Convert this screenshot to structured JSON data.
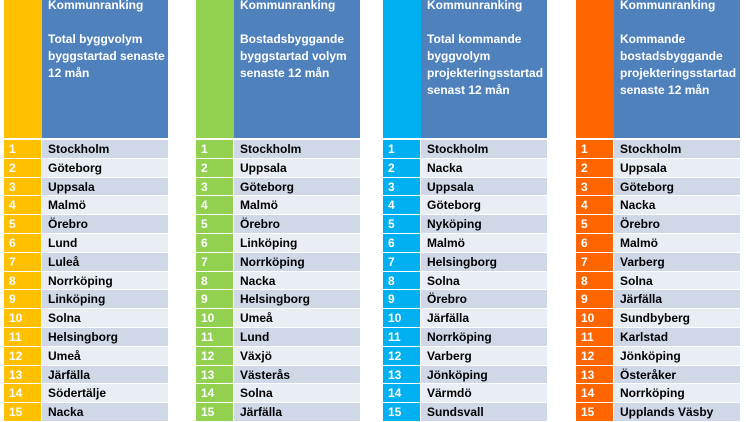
{
  "panels": [
    {
      "accent": "#ffc000",
      "header": "Kommunranking",
      "subheader": "Total byggvolym\nbyggstartad senaste\n12 mån",
      "rows": [
        {
          "rank": "1",
          "name": "Stockholm"
        },
        {
          "rank": "2",
          "name": "Göteborg"
        },
        {
          "rank": "3",
          "name": "Uppsala"
        },
        {
          "rank": "4",
          "name": "Malmö"
        },
        {
          "rank": "5",
          "name": "Örebro"
        },
        {
          "rank": "6",
          "name": "Lund"
        },
        {
          "rank": "7",
          "name": "Luleå"
        },
        {
          "rank": "8",
          "name": "Norrköping"
        },
        {
          "rank": "9",
          "name": "Linköping"
        },
        {
          "rank": "10",
          "name": "Solna"
        },
        {
          "rank": "11",
          "name": "Helsingborg"
        },
        {
          "rank": "12",
          "name": "Umeå"
        },
        {
          "rank": "13",
          "name": "Järfälla"
        },
        {
          "rank": "14",
          "name": "Södertälje"
        },
        {
          "rank": "15",
          "name": "Nacka"
        }
      ]
    },
    {
      "accent": "#92d050",
      "header": "Kommunranking",
      "subheader": "Bostadsbyggande\nbyggstartad volym\nsenaste 12 mån",
      "rows": [
        {
          "rank": "1",
          "name": "Stockholm"
        },
        {
          "rank": "2",
          "name": "Uppsala"
        },
        {
          "rank": "3",
          "name": "Göteborg"
        },
        {
          "rank": "4",
          "name": "Malmö"
        },
        {
          "rank": "5",
          "name": "Örebro"
        },
        {
          "rank": "6",
          "name": "Linköping"
        },
        {
          "rank": "7",
          "name": "Norrköping"
        },
        {
          "rank": "8",
          "name": "Nacka"
        },
        {
          "rank": "9",
          "name": "Helsingborg"
        },
        {
          "rank": "10",
          "name": "Umeå"
        },
        {
          "rank": "11",
          "name": "Lund"
        },
        {
          "rank": "12",
          "name": "Växjö"
        },
        {
          "rank": "13",
          "name": "Västerås"
        },
        {
          "rank": "14",
          "name": "Solna"
        },
        {
          "rank": "15",
          "name": "Järfälla"
        }
      ]
    },
    {
      "accent": "#00b0f0",
      "header": "Kommunranking",
      "subheader": "Total kommande\nbyggvolym\nprojekteringsstartad\nsenast 12 mån",
      "rows": [
        {
          "rank": "1",
          "name": "Stockholm"
        },
        {
          "rank": "2",
          "name": "Nacka"
        },
        {
          "rank": "3",
          "name": "Uppsala"
        },
        {
          "rank": "4",
          "name": "Göteborg"
        },
        {
          "rank": "5",
          "name": "Nyköping"
        },
        {
          "rank": "6",
          "name": "Malmö"
        },
        {
          "rank": "7",
          "name": "Helsingborg"
        },
        {
          "rank": "8",
          "name": "Solna"
        },
        {
          "rank": "9",
          "name": "Örebro"
        },
        {
          "rank": "10",
          "name": "Järfälla"
        },
        {
          "rank": "11",
          "name": "Norrköping"
        },
        {
          "rank": "12",
          "name": "Varberg"
        },
        {
          "rank": "13",
          "name": "Jönköping"
        },
        {
          "rank": "14",
          "name": "Värmdö"
        },
        {
          "rank": "15",
          "name": "Sundsvall"
        }
      ]
    },
    {
      "accent": "#ff6600",
      "header": "Kommunranking",
      "subheader": "Kommande\nbostadsbyggande\nprojekteringsstartad\nsenaste 12 mån",
      "rows": [
        {
          "rank": "1",
          "name": "Stockholm"
        },
        {
          "rank": "2",
          "name": "Uppsala"
        },
        {
          "rank": "3",
          "name": "Göteborg"
        },
        {
          "rank": "4",
          "name": "Nacka"
        },
        {
          "rank": "5",
          "name": "Örebro"
        },
        {
          "rank": "6",
          "name": "Malmö"
        },
        {
          "rank": "7",
          "name": "Varberg"
        },
        {
          "rank": "8",
          "name": "Solna"
        },
        {
          "rank": "9",
          "name": "Järfälla"
        },
        {
          "rank": "10",
          "name": "Sundbyberg"
        },
        {
          "rank": "11",
          "name": "Karlstad"
        },
        {
          "rank": "12",
          "name": "Jönköping"
        },
        {
          "rank": "13",
          "name": "Österåker"
        },
        {
          "rank": "14",
          "name": "Norrköping"
        },
        {
          "rank": "15",
          "name": "Upplands Väsby"
        }
      ]
    }
  ]
}
